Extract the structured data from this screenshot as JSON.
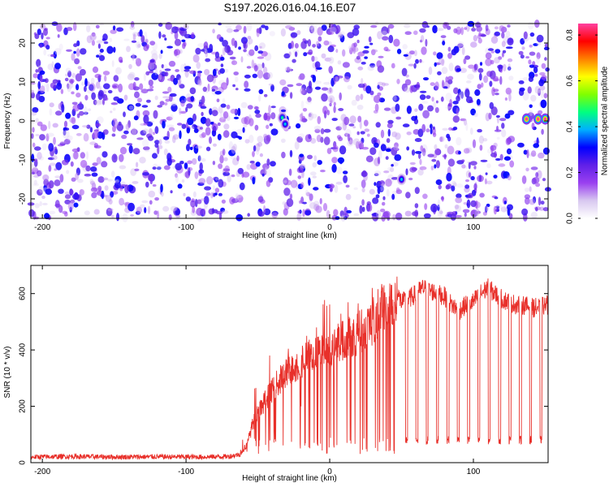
{
  "figure_title": "S197.2026.016.04.16.E07",
  "colors": {
    "snr_line": "#e8302a",
    "axis": "#000000",
    "colormap": [
      "#ffffff",
      "#d8c8f0",
      "#9a40f0",
      "#6020e8",
      "#0000ff",
      "#00b0ff",
      "#00ff80",
      "#80ff00",
      "#ffff00",
      "#ff8000",
      "#ff0000",
      "#ff40a0"
    ]
  },
  "chart_data": [
    {
      "type": "heatmap",
      "title": "",
      "xlabel": "Height of straight line (km)",
      "ylabel": "Frequency (Hz)",
      "xlim": [
        -208,
        152
      ],
      "ylim": [
        -25,
        25
      ],
      "x_ticks": [
        -200,
        -100,
        0,
        100
      ],
      "x_tick_labels": [
        "-200",
        "-100",
        "0",
        "100"
      ],
      "y_ticks": [
        -20,
        -10,
        0,
        10,
        20
      ],
      "y_tick_labels": [
        "-20",
        "-10",
        "0",
        "10",
        "20"
      ],
      "colorbar": {
        "label": "Normalized spectral amplitude",
        "range": [
          0,
          0.85
        ],
        "ticks": [
          0,
          0.2,
          0.4,
          0.6,
          0.8
        ],
        "tick_labels": [
          "0.0",
          "0.2",
          "0.4",
          "0.6",
          "0.8"
        ]
      },
      "gaps_km": [
        [
          -38,
          -33
        ],
        [
          49,
          52
        ],
        [
          127,
          133
        ]
      ],
      "hotspots": [
        {
          "x": -33,
          "y": 0.8,
          "amp": 0.45
        },
        {
          "x": -31,
          "y": -0.8,
          "amp": 0.4
        },
        {
          "x": 50,
          "y": -15,
          "amp": 0.4
        },
        {
          "x": 137,
          "y": 0.5,
          "amp": 0.85
        },
        {
          "x": 145,
          "y": 0.5,
          "amp": 0.85
        },
        {
          "x": 150,
          "y": 0.5,
          "amp": 0.85
        }
      ]
    },
    {
      "type": "line",
      "title": "",
      "xlabel": "Height of straight line (km)",
      "ylabel": "SNR (10 * v/v)",
      "xlim": [
        -208,
        152
      ],
      "ylim": [
        0,
        700
      ],
      "x_ticks": [
        -200,
        -100,
        0,
        100
      ],
      "x_tick_labels": [
        "-200",
        "-100",
        "0",
        "100"
      ],
      "y_ticks": [
        0,
        200,
        400,
        600
      ],
      "y_tick_labels": [
        "0",
        "200",
        "400",
        "600"
      ],
      "series": [
        {
          "name": "SNR",
          "x": [
            -208,
            -180,
            -150,
            -120,
            -90,
            -70,
            -62,
            -58,
            -55,
            -50,
            -45,
            -40,
            -35,
            -30,
            -25,
            -20,
            -15,
            -10,
            -5,
            0,
            5,
            10,
            15,
            20,
            25,
            30,
            35,
            40,
            45,
            47,
            50,
            55,
            60,
            65,
            70,
            75,
            80,
            85,
            90,
            95,
            100,
            105,
            110,
            115,
            120,
            125,
            130,
            135,
            140,
            145,
            152
          ],
          "values": [
            20,
            22,
            20,
            21,
            20,
            22,
            30,
            60,
            120,
            180,
            220,
            260,
            290,
            320,
            340,
            360,
            370,
            380,
            390,
            400,
            420,
            440,
            450,
            460,
            480,
            500,
            540,
            570,
            590,
            600,
            570,
            580,
            600,
            620,
            610,
            600,
            590,
            560,
            540,
            560,
            570,
            600,
            620,
            600,
            580,
            570,
            560,
            560,
            550,
            550,
            560
          ]
        }
      ],
      "dropouts": {
        "start_km": 47,
        "spacing_km": 7.2,
        "end_km": 152,
        "floor_value": 80
      }
    }
  ]
}
